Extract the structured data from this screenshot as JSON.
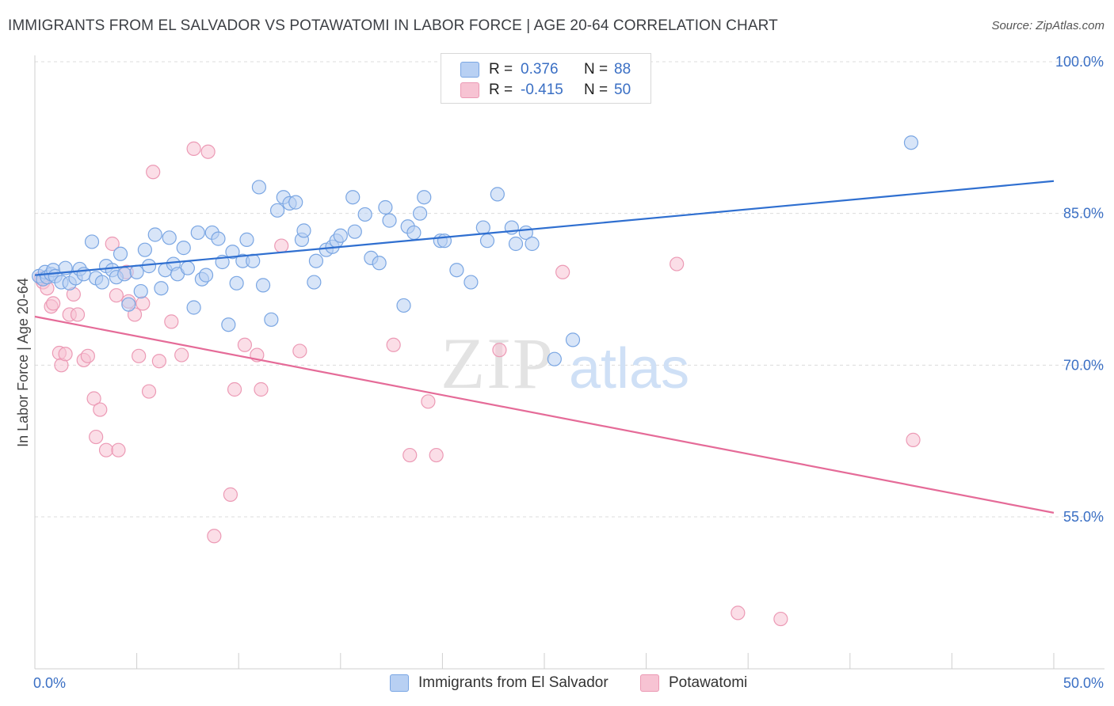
{
  "title": "IMMIGRANTS FROM EL SALVADOR VS POTAWATOMI IN LABOR FORCE | AGE 20-64 CORRELATION CHART",
  "source": "Source: ZipAtlas.com",
  "watermark": {
    "zip": "ZIP",
    "atlas": "atlas"
  },
  "legend": {
    "rows": [
      {
        "r_label": "R =",
        "r_value": "0.376",
        "n_label": "N =",
        "n_value": "88"
      },
      {
        "r_label": "R =",
        "r_value": "-0.415",
        "n_label": "N =",
        "n_value": "50"
      }
    ]
  },
  "colors": {
    "blue_fill": "#b8d0f3",
    "blue_stroke": "#7aa6e3",
    "blue_line": "#2f6fd0",
    "pink_fill": "#f7c3d3",
    "pink_stroke": "#ec9ab5",
    "pink_line": "#e56b98",
    "tick_text": "#3a6fc4",
    "grid": "#dcdcdc"
  },
  "chart_data": {
    "type": "scatter",
    "title": "IMMIGRANTS FROM EL SALVADOR VS POTAWATOMI IN LABOR FORCE | AGE 20-64 CORRELATION CHART",
    "xlabel": "",
    "ylabel": "In Labor Force | Age 20-64",
    "xlim": [
      0,
      50
    ],
    "ylim": [
      40,
      102
    ],
    "x_tick_labels": [
      "0.0%",
      "50.0%"
    ],
    "y_ticks": [
      55,
      70,
      85,
      100
    ],
    "y_tick_labels": [
      "55.0%",
      "70.0%",
      "85.0%",
      "100.0%"
    ],
    "grid": true,
    "legend_position": "top-center",
    "series": [
      {
        "name": "Immigrants from El Salvador",
        "color": "#b8d0f3",
        "trend": {
          "x": [
            0,
            50
          ],
          "y": [
            78.9,
            88.2
          ]
        },
        "points": [
          [
            0.2,
            78.8
          ],
          [
            0.4,
            78.5
          ],
          [
            0.5,
            79.2
          ],
          [
            0.6,
            78.7
          ],
          [
            0.8,
            79.0
          ],
          [
            0.9,
            79.4
          ],
          [
            1.0,
            78.8
          ],
          [
            1.3,
            78.2
          ],
          [
            1.5,
            79.6
          ],
          [
            1.7,
            78.1
          ],
          [
            2.0,
            78.6
          ],
          [
            2.2,
            79.5
          ],
          [
            2.4,
            79.0
          ],
          [
            2.8,
            82.2
          ],
          [
            3.0,
            78.6
          ],
          [
            3.3,
            78.2
          ],
          [
            3.5,
            79.8
          ],
          [
            3.8,
            79.4
          ],
          [
            4.0,
            78.7
          ],
          [
            4.2,
            81.0
          ],
          [
            4.4,
            79.0
          ],
          [
            4.6,
            76.0
          ],
          [
            5.0,
            79.2
          ],
          [
            5.2,
            77.3
          ],
          [
            5.4,
            81.4
          ],
          [
            5.6,
            79.8
          ],
          [
            5.9,
            82.9
          ],
          [
            6.2,
            77.6
          ],
          [
            6.4,
            79.4
          ],
          [
            6.6,
            82.6
          ],
          [
            6.8,
            80.0
          ],
          [
            7.0,
            79.0
          ],
          [
            7.3,
            81.6
          ],
          [
            7.5,
            79.6
          ],
          [
            7.8,
            75.7
          ],
          [
            8.0,
            83.1
          ],
          [
            8.2,
            78.5
          ],
          [
            8.4,
            78.9
          ],
          [
            8.7,
            83.1
          ],
          [
            9.0,
            82.5
          ],
          [
            9.2,
            80.2
          ],
          [
            9.5,
            74.0
          ],
          [
            9.7,
            81.2
          ],
          [
            9.9,
            78.1
          ],
          [
            10.2,
            80.3
          ],
          [
            10.4,
            82.4
          ],
          [
            10.7,
            80.3
          ],
          [
            11.0,
            87.6
          ],
          [
            11.2,
            77.9
          ],
          [
            11.6,
            74.5
          ],
          [
            11.9,
            85.3
          ],
          [
            12.2,
            86.6
          ],
          [
            12.5,
            86.0
          ],
          [
            12.8,
            86.1
          ],
          [
            13.1,
            82.4
          ],
          [
            13.2,
            83.3
          ],
          [
            13.7,
            78.2
          ],
          [
            13.8,
            80.3
          ],
          [
            14.3,
            81.4
          ],
          [
            14.6,
            81.7
          ],
          [
            14.8,
            82.3
          ],
          [
            15.0,
            82.8
          ],
          [
            15.6,
            86.6
          ],
          [
            15.7,
            83.2
          ],
          [
            16.2,
            84.9
          ],
          [
            16.5,
            80.6
          ],
          [
            16.9,
            80.1
          ],
          [
            17.2,
            85.6
          ],
          [
            17.4,
            84.3
          ],
          [
            18.1,
            75.9
          ],
          [
            18.3,
            83.7
          ],
          [
            18.6,
            83.1
          ],
          [
            18.9,
            85.0
          ],
          [
            19.1,
            86.6
          ],
          [
            19.9,
            82.3
          ],
          [
            20.1,
            82.3
          ],
          [
            20.7,
            79.4
          ],
          [
            21.4,
            78.2
          ],
          [
            22.0,
            83.6
          ],
          [
            22.2,
            82.3
          ],
          [
            22.7,
            86.9
          ],
          [
            23.4,
            83.6
          ],
          [
            23.6,
            82.0
          ],
          [
            24.1,
            83.1
          ],
          [
            24.4,
            82.0
          ],
          [
            25.5,
            70.6
          ],
          [
            26.4,
            72.5
          ],
          [
            43.0,
            92.0
          ]
        ]
      },
      {
        "name": "Potawatomi",
        "color": "#f7c3d3",
        "trend": {
          "x": [
            0,
            50
          ],
          "y": [
            74.8,
            55.4
          ]
        },
        "points": [
          [
            0.3,
            78.6
          ],
          [
            0.4,
            78.2
          ],
          [
            0.6,
            77.6
          ],
          [
            0.8,
            75.8
          ],
          [
            0.9,
            76.1
          ],
          [
            1.2,
            71.2
          ],
          [
            1.3,
            70.0
          ],
          [
            1.5,
            71.1
          ],
          [
            1.7,
            75.0
          ],
          [
            1.9,
            77.0
          ],
          [
            2.1,
            75.0
          ],
          [
            2.4,
            70.5
          ],
          [
            2.6,
            70.9
          ],
          [
            2.9,
            66.7
          ],
          [
            3.0,
            62.9
          ],
          [
            3.2,
            65.6
          ],
          [
            3.5,
            61.6
          ],
          [
            3.8,
            82.0
          ],
          [
            4.0,
            76.9
          ],
          [
            4.1,
            61.6
          ],
          [
            4.5,
            79.2
          ],
          [
            4.6,
            76.3
          ],
          [
            4.9,
            75.0
          ],
          [
            5.1,
            70.9
          ],
          [
            5.3,
            76.1
          ],
          [
            5.6,
            67.4
          ],
          [
            5.8,
            89.1
          ],
          [
            6.1,
            70.4
          ],
          [
            6.7,
            74.3
          ],
          [
            7.2,
            71.0
          ],
          [
            7.8,
            91.4
          ],
          [
            8.5,
            91.1
          ],
          [
            8.8,
            53.1
          ],
          [
            9.6,
            57.2
          ],
          [
            9.8,
            67.6
          ],
          [
            10.3,
            72.0
          ],
          [
            10.9,
            71.0
          ],
          [
            11.1,
            67.6
          ],
          [
            12.1,
            81.8
          ],
          [
            13.0,
            71.4
          ],
          [
            17.6,
            72.0
          ],
          [
            18.4,
            61.1
          ],
          [
            19.3,
            66.4
          ],
          [
            19.7,
            61.1
          ],
          [
            22.8,
            71.5
          ],
          [
            25.9,
            79.2
          ],
          [
            31.5,
            80.0
          ],
          [
            34.5,
            45.5
          ],
          [
            36.6,
            44.9
          ],
          [
            43.1,
            62.6
          ]
        ]
      }
    ]
  }
}
